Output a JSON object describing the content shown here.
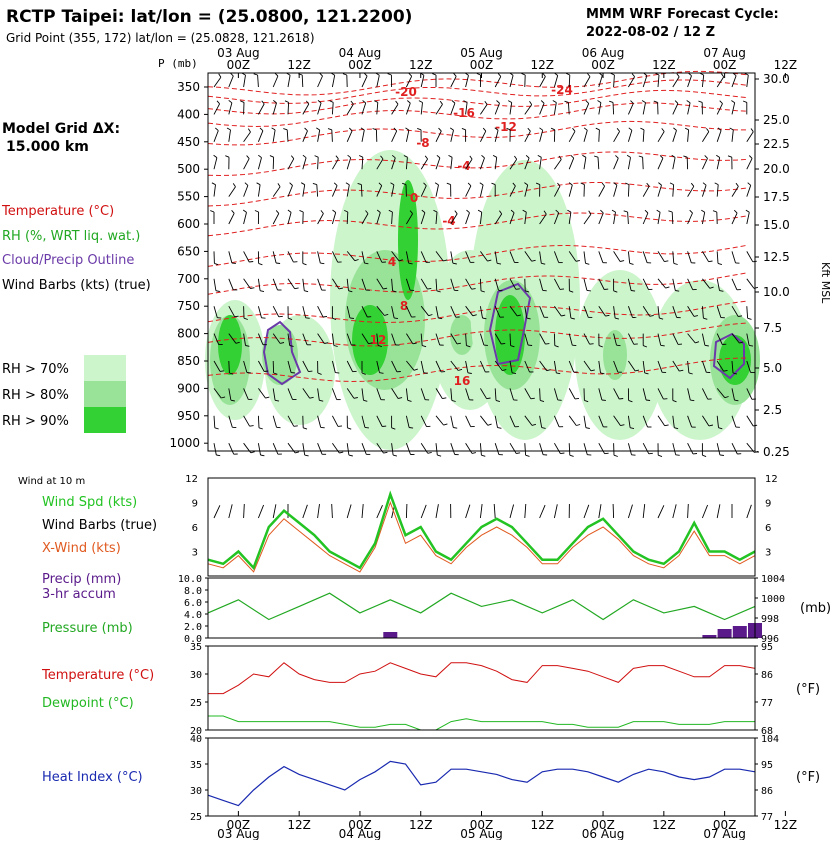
{
  "header": {
    "title": "RCTP Taipei:  lat/lon = (25.0800, 121.2200)",
    "grid_point": "Grid Point (355, 172) lat/lon = (25.0828, 121.2618)",
    "cycle_label": "MMM WRF Forecast Cycle:",
    "cycle_value": "2022-08-02 / 12  Z"
  },
  "sidebar": {
    "model_grid_label": "Model Grid ΔX:",
    "model_grid_value": "15.000 km",
    "legend_temperature": "Temperature (°C)",
    "legend_rh": "RH (%, WRT liq. wat.)",
    "legend_cloud": "Cloud/Precip Outline",
    "legend_wind": "Wind Barbs (kts) (true)",
    "rh_levels": [
      "RH > 70%",
      "RH > 80%",
      "RH > 90%"
    ]
  },
  "colors": {
    "rh70": "#ccf5cc",
    "rh80": "#99e399",
    "rh90": "#33d133",
    "temperature": "#e02020",
    "cloud": "#6a3aa8",
    "wind_speed": "#22c322",
    "x_wind": "#e05a20",
    "pressure": "#22a822",
    "precip": "#5a1a8a",
    "sfc_temp": "#d01010",
    "dewpoint": "#22b822",
    "heat_index": "#1a2ab0"
  },
  "time_axis": {
    "ticks": [
      "00Z",
      "12Z",
      "00Z",
      "12Z",
      "00Z",
      "12Z",
      "00Z",
      "12Z",
      "00Z",
      "12Z"
    ],
    "dates": [
      "03 Aug",
      "04 Aug",
      "05 Aug",
      "06 Aug",
      "07 Aug"
    ]
  },
  "cross_section": {
    "p_label": "P (mb)",
    "kft_label": "Kft MSL",
    "pressure_ticks": [
      "350",
      "400",
      "450",
      "500",
      "550",
      "600",
      "650",
      "700",
      "750",
      "800",
      "850",
      "900",
      "950",
      "1000"
    ],
    "kft_ticks": [
      "30.0",
      "25.0",
      "22.5",
      "20.0",
      "17.5",
      "15.0",
      "12.5",
      "10.0",
      "7.5",
      "5.0",
      "2.5",
      "0.25"
    ],
    "temperature_labels": [
      "-20",
      "-24",
      "-16",
      "-12",
      "-8",
      "-4",
      "-4",
      "0",
      "4",
      "8",
      "12",
      "16",
      "20"
    ]
  },
  "wind_panel": {
    "note": "Wind at 10 m",
    "label_speed": "Wind Spd (kts)",
    "label_barbs": "Wind Barbs (true)",
    "label_xwind": "X-Wind (kts)",
    "ticks": [
      "12",
      "9",
      "6",
      "3"
    ]
  },
  "precip_panel": {
    "label_precip": "Precip (mm)",
    "label_accum": "3-hr accum",
    "label_pressure": "Pressure (mb)",
    "left_ticks": [
      "10.0",
      "8.0",
      "6.0",
      "4.0",
      "2.0",
      "0.0"
    ],
    "right_ticks": [
      "1004",
      "1000",
      "998",
      "996"
    ],
    "right_unit": "(mb)"
  },
  "temp_panel": {
    "label_temp": "Temperature (°C)",
    "label_dew": "Dewpoint (°C)",
    "left_ticks": [
      "35",
      "30",
      "25",
      "20"
    ],
    "right_ticks": [
      "95",
      "86",
      "77",
      "68"
    ],
    "unit_f": "(°F)"
  },
  "heat_panel": {
    "label": "Heat Index (°C)",
    "left_ticks": [
      "40",
      "35",
      "30",
      "25"
    ],
    "right_ticks": [
      "104",
      "95",
      "86",
      "77"
    ],
    "unit_f": "(°F)"
  },
  "chart_data": [
    {
      "type": "line",
      "title": "10 m Wind",
      "x_hours": [
        0,
        3,
        6,
        9,
        12,
        15,
        18,
        21,
        24,
        27,
        30,
        33,
        36,
        39,
        42,
        45,
        48,
        51,
        54,
        57,
        60,
        63,
        66,
        69,
        72,
        75,
        78,
        81,
        84,
        87,
        90,
        93,
        96,
        99,
        102,
        105,
        108
      ],
      "series": [
        {
          "name": "Wind Spd (kts)",
          "values": [
            2,
            1.5,
            3,
            1,
            6,
            8,
            6.5,
            5,
            3,
            2,
            1,
            4,
            10,
            5,
            6,
            3,
            2,
            4,
            6,
            7,
            6,
            4,
            2,
            2,
            4,
            6,
            7,
            5,
            3,
            2,
            1.5,
            3,
            6.5,
            3,
            3,
            2,
            3
          ]
        },
        {
          "name": "X-Wind (kts)",
          "values": [
            1.5,
            1,
            2.5,
            0.5,
            5,
            7,
            5.5,
            4,
            2.5,
            1.5,
            0.5,
            3.5,
            9,
            4,
            5,
            2.5,
            1.5,
            3.5,
            5,
            6,
            5,
            3.5,
            1.5,
            1.5,
            3.5,
            5,
            6,
            4.5,
            2.5,
            1.5,
            1,
            2.5,
            5.5,
            2.5,
            2.5,
            1.5,
            2.5
          ]
        }
      ],
      "ylim": [
        0,
        12
      ]
    },
    {
      "type": "line",
      "title": "Pressure (mb)",
      "x_hours": [
        0,
        6,
        12,
        18,
        24,
        30,
        36,
        42,
        48,
        54,
        60,
        66,
        72,
        78,
        84,
        90,
        96,
        102,
        108
      ],
      "series": [
        {
          "name": "Pressure (mb)",
          "values": [
            999,
            1001,
            998,
            1000,
            1002,
            999,
            1001,
            999,
            1002,
            1000,
            1001,
            999,
            1001,
            998,
            1001,
            999,
            1000,
            998,
            1000
          ]
        }
      ],
      "ylim": [
        995.5,
        1004
      ]
    },
    {
      "type": "bar",
      "title": "Precip (mm) 3-hr accum",
      "x_hours": [
        36,
        99,
        102,
        105,
        108
      ],
      "values": [
        1.0,
        0.5,
        1.5,
        2.0,
        2.5
      ],
      "ylim": [
        0,
        10
      ]
    },
    {
      "type": "line",
      "title": "Temperature / Dewpoint",
      "x_hours": [
        0,
        3,
        6,
        9,
        12,
        15,
        18,
        21,
        24,
        27,
        30,
        33,
        36,
        39,
        42,
        45,
        48,
        51,
        54,
        57,
        60,
        63,
        66,
        69,
        72,
        75,
        78,
        81,
        84,
        87,
        90,
        93,
        96,
        99,
        102,
        105,
        108
      ],
      "series": [
        {
          "name": "Temperature (°C)",
          "values": [
            26.5,
            26.5,
            28,
            30,
            29.5,
            32,
            30,
            29,
            28.5,
            28.5,
            30,
            30.5,
            32,
            31,
            30,
            29.5,
            32,
            32,
            31.5,
            30.5,
            29,
            28.5,
            31.5,
            31.5,
            31,
            30.5,
            29.5,
            28.5,
            31,
            31.5,
            31.5,
            30.5,
            29.5,
            29.5,
            31.5,
            31.5,
            31
          ]
        },
        {
          "name": "Dewpoint (°C)",
          "values": [
            22.5,
            22.5,
            21.5,
            21.5,
            21.5,
            21.5,
            21.5,
            21.5,
            21.5,
            21,
            20.5,
            20.5,
            21,
            21,
            20,
            20,
            21.5,
            22,
            21.5,
            21.5,
            21.5,
            21.5,
            21.5,
            21,
            21,
            20.5,
            20.5,
            20.5,
            21.5,
            21.5,
            21.5,
            21,
            21,
            21,
            21.5,
            21.5,
            21.5
          ]
        }
      ],
      "ylim": [
        20,
        35
      ]
    },
    {
      "type": "line",
      "title": "Heat Index (°C)",
      "x_hours": [
        0,
        3,
        6,
        9,
        12,
        15,
        18,
        21,
        24,
        27,
        30,
        33,
        36,
        39,
        42,
        45,
        48,
        51,
        54,
        57,
        60,
        63,
        66,
        69,
        72,
        75,
        78,
        81,
        84,
        87,
        90,
        93,
        96,
        99,
        102,
        105,
        108
      ],
      "series": [
        {
          "name": "Heat Index (°C)",
          "values": [
            29,
            28,
            27,
            30,
            32.5,
            34.5,
            33,
            32,
            31,
            30,
            32,
            33.5,
            35.5,
            35,
            31,
            31.5,
            34,
            34,
            33.5,
            33,
            32,
            31.5,
            33.5,
            34,
            34,
            33.5,
            32.5,
            31.5,
            33,
            34,
            33.5,
            32.5,
            32,
            32.5,
            34,
            34,
            33.5
          ]
        }
      ],
      "ylim": [
        25,
        40
      ]
    }
  ]
}
